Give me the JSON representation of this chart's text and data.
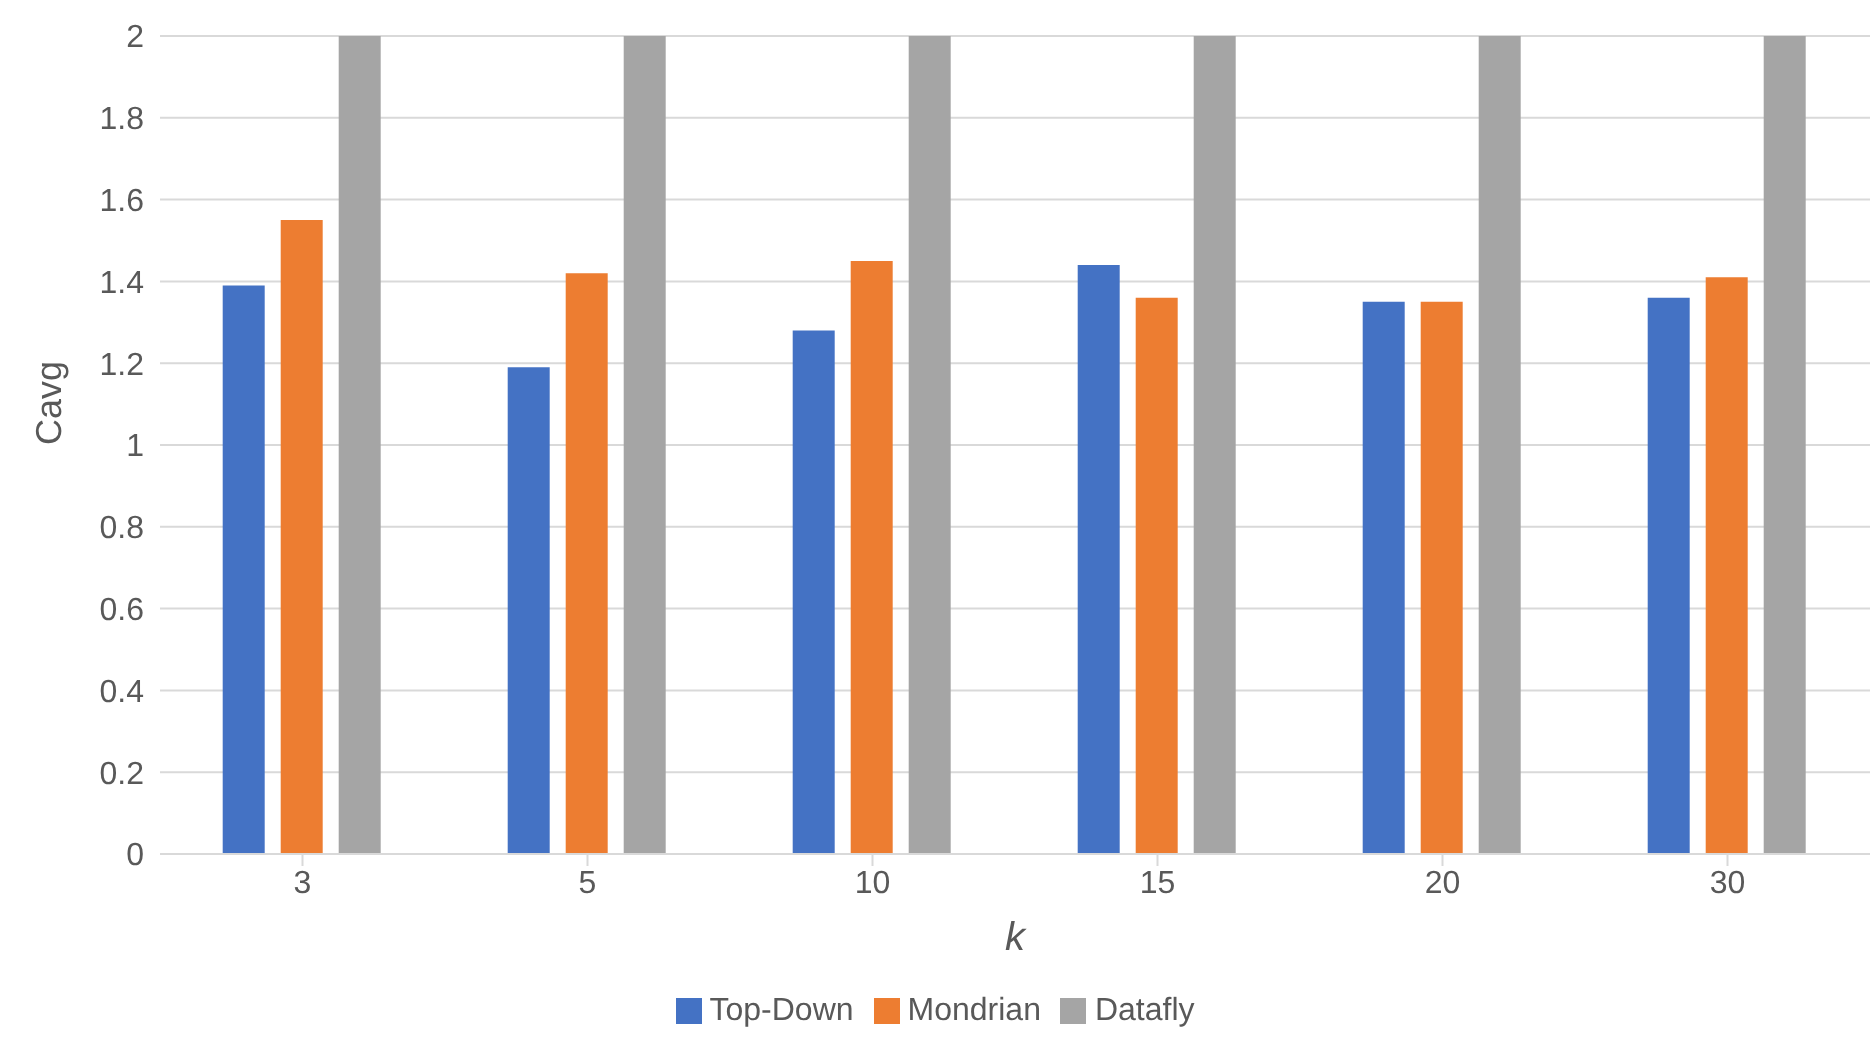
{
  "chart_data": {
    "type": "bar",
    "xlabel": "k",
    "ylabel": "Cavg",
    "categories": [
      "3",
      "5",
      "10",
      "15",
      "20",
      "30"
    ],
    "series": [
      {
        "name": "Top-Down",
        "color": "#4472c4",
        "values": [
          1.39,
          1.19,
          1.28,
          1.44,
          1.35,
          1.36
        ]
      },
      {
        "name": "Mondrian",
        "color": "#ed7d31",
        "values": [
          1.55,
          1.42,
          1.45,
          1.36,
          1.35,
          1.41
        ]
      },
      {
        "name": "Datafly",
        "color": "#a5a5a5",
        "values": [
          2,
          2,
          2,
          2,
          2,
          2
        ]
      }
    ],
    "ylim": [
      0,
      2
    ],
    "yticks": [
      0,
      0.2,
      0.4,
      0.6,
      0.8,
      1,
      1.2,
      1.4,
      1.6,
      1.8,
      2
    ],
    "grid": "y",
    "legend": "bottom"
  }
}
